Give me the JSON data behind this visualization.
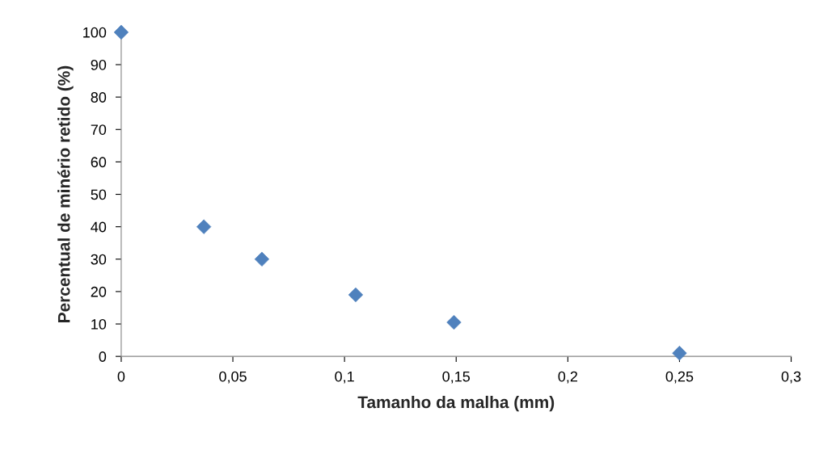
{
  "chart_data": {
    "type": "scatter",
    "xlabel": "Tamanho da malha (mm)",
    "ylabel": "Percentual de minério retido (%)",
    "x": [
      0,
      0.037,
      0.063,
      0.105,
      0.149,
      0.25
    ],
    "series": [
      {
        "color": "#4f81bd",
        "values": [
          100,
          40,
          30,
          19,
          10.5,
          1
        ]
      }
    ],
    "marker": "diamond",
    "grid": false,
    "legend": false,
    "xlim": [
      0,
      0.3
    ],
    "xticks": [
      0,
      {
        "value": 0.05,
        "label": "0,05"
      },
      {
        "value": 0.1,
        "label": "0,1"
      },
      {
        "value": 0.15,
        "label": "0,15"
      },
      {
        "value": 0.2,
        "label": "0,2"
      },
      {
        "value": 0.25,
        "label": "0,25"
      },
      {
        "value": 0.3,
        "label": "0,3"
      }
    ],
    "ylim": [
      0,
      100
    ],
    "yticks": [
      0,
      10,
      20,
      30,
      40,
      50,
      60,
      70,
      80,
      90,
      100
    ]
  }
}
